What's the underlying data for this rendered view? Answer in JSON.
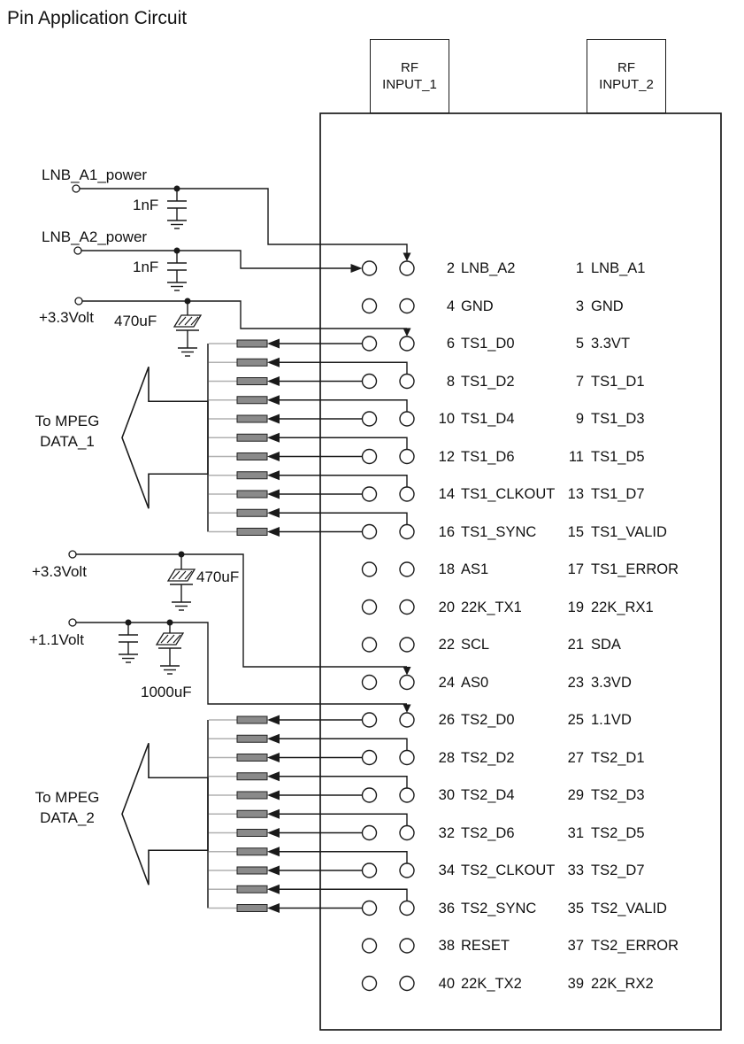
{
  "title": "Pin Application Circuit",
  "rf_inputs": [
    {
      "line1": "RF",
      "line2": "INPUT_1"
    },
    {
      "line1": "RF",
      "line2": "INPUT_2"
    }
  ],
  "power": {
    "lnb_a1": {
      "label": "LNB_A1_power",
      "cap": "1nF"
    },
    "lnb_a2": {
      "label": "LNB_A2_power",
      "cap": "1nF"
    },
    "rail_3v3_top": {
      "label": "+3.3Volt",
      "cap": "470uF"
    },
    "rail_3v3_mid": {
      "label": "+3.3Volt",
      "cap": "470uF"
    },
    "rail_1v1": {
      "label": "+1.1Volt",
      "cap": "1000uF"
    }
  },
  "mpeg_outputs": [
    {
      "line1": "To MPEG",
      "line2": "DATA_1"
    },
    {
      "line1": "To MPEG",
      "line2": "DATA_2"
    }
  ],
  "pins": {
    "rows": [
      {
        "left_num": "2",
        "left_name": "LNB_A2",
        "right_num": "1",
        "right_name": "LNB_A1"
      },
      {
        "left_num": "4",
        "left_name": "GND",
        "right_num": "3",
        "right_name": "GND"
      },
      {
        "left_num": "6",
        "left_name": "TS1_D0",
        "right_num": "5",
        "right_name": "3.3VT"
      },
      {
        "left_num": "8",
        "left_name": "TS1_D2",
        "right_num": "7",
        "right_name": "TS1_D1"
      },
      {
        "left_num": "10",
        "left_name": "TS1_D4",
        "right_num": "9",
        "right_name": "TS1_D3"
      },
      {
        "left_num": "12",
        "left_name": "TS1_D6",
        "right_num": "11",
        "right_name": "TS1_D5"
      },
      {
        "left_num": "14",
        "left_name": "TS1_CLKOUT",
        "right_num": "13",
        "right_name": "TS1_D7"
      },
      {
        "left_num": "16",
        "left_name": "TS1_SYNC",
        "right_num": "15",
        "right_name": "TS1_VALID"
      },
      {
        "left_num": "18",
        "left_name": "AS1",
        "right_num": "17",
        "right_name": "TS1_ERROR"
      },
      {
        "left_num": "20",
        "left_name": "22K_TX1",
        "right_num": "19",
        "right_name": "22K_RX1"
      },
      {
        "left_num": "22",
        "left_name": "SCL",
        "right_num": "21",
        "right_name": "SDA"
      },
      {
        "left_num": "24",
        "left_name": "AS0",
        "right_num": "23",
        "right_name": "3.3VD"
      },
      {
        "left_num": "26",
        "left_name": "TS2_D0",
        "right_num": "25",
        "right_name": "1.1VD"
      },
      {
        "left_num": "28",
        "left_name": "TS2_D2",
        "right_num": "27",
        "right_name": "TS2_D1"
      },
      {
        "left_num": "30",
        "left_name": "TS2_D4",
        "right_num": "29",
        "right_name": "TS2_D3"
      },
      {
        "left_num": "32",
        "left_name": "TS2_D6",
        "right_num": "31",
        "right_name": "TS2_D5"
      },
      {
        "left_num": "34",
        "left_name": "TS2_CLKOUT",
        "right_num": "33",
        "right_name": "TS2_D7"
      },
      {
        "left_num": "36",
        "left_name": "TS2_SYNC",
        "right_num": "35",
        "right_name": "TS2_VALID"
      },
      {
        "left_num": "38",
        "left_name": "RESET",
        "right_num": "37",
        "right_name": "TS2_ERROR"
      },
      {
        "left_num": "40",
        "left_name": "22K_TX2",
        "right_num": "39",
        "right_name": "22K_RX2"
      }
    ]
  },
  "colors": {
    "line": "#1a1a1a",
    "resistor_fill": "#8a8a8a",
    "resistor_border": "#222222",
    "lead_gray": "#b0b0b0",
    "background": "#ffffff"
  }
}
